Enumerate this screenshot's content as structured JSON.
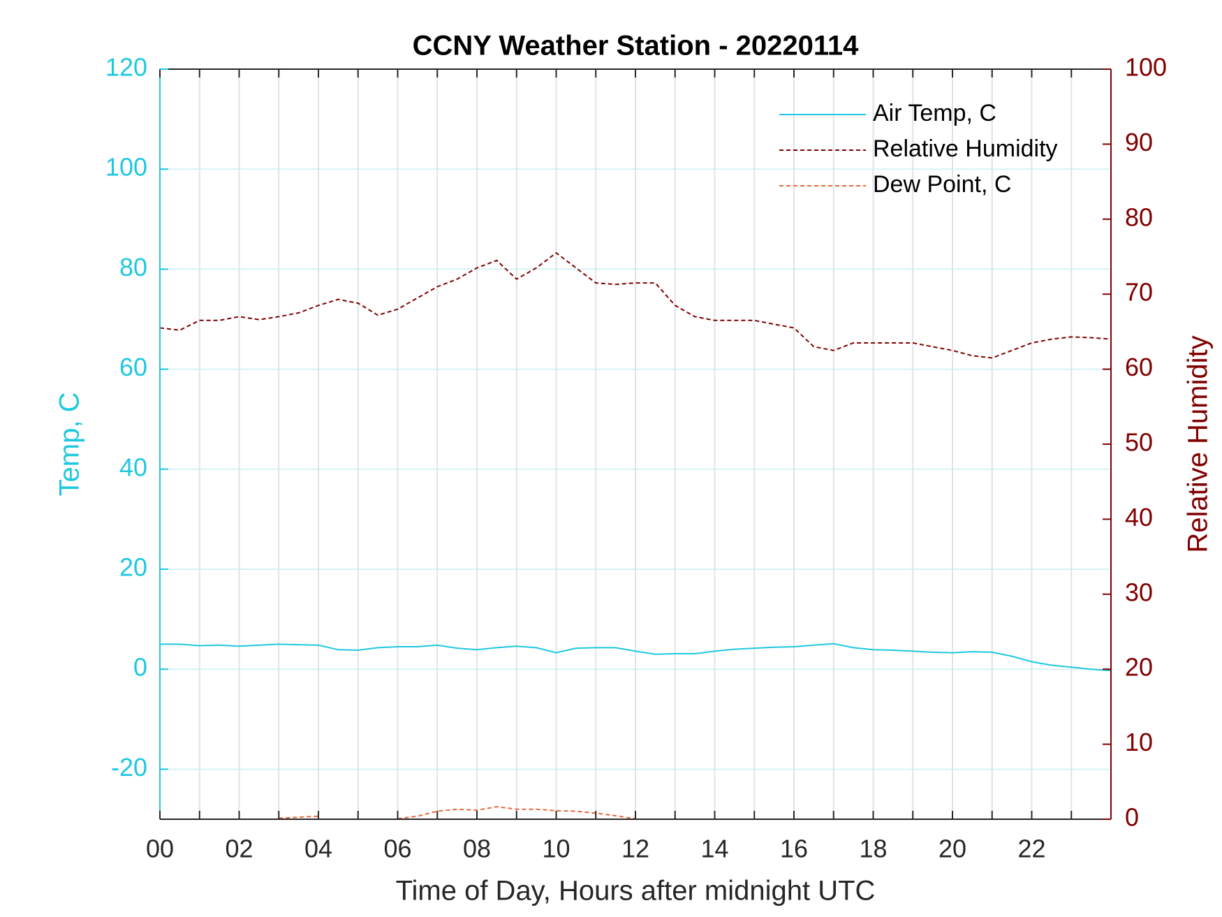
{
  "chart_data": {
    "type": "line",
    "title": "CCNY Weather Station - 20220114",
    "xlabel": "Time of Day, Hours after midnight UTC",
    "ylabel": "Temp, C",
    "y2label": "Relative Humidity",
    "x": [
      0,
      0.5,
      1,
      1.5,
      2,
      2.5,
      3,
      3.5,
      4,
      4.5,
      5,
      5.5,
      6,
      6.5,
      7,
      7.5,
      8,
      8.5,
      9,
      9.5,
      10,
      10.5,
      11,
      11.5,
      12,
      12.5,
      13,
      13.5,
      14,
      14.5,
      15,
      15.5,
      16,
      16.5,
      17,
      17.5,
      18,
      18.5,
      19,
      19.5,
      20,
      20.5,
      21,
      21.5,
      22,
      22.5,
      23,
      23.5,
      24
    ],
    "series": [
      {
        "name": "Air Temp, C",
        "color": "#1ec8e0",
        "linestyle": "solid",
        "axis": "y",
        "values": [
          5,
          5,
          4.7,
          4.8,
          4.6,
          4.8,
          5,
          4.9,
          4.8,
          3.9,
          3.8,
          4.3,
          4.5,
          4.5,
          4.8,
          4.2,
          3.9,
          4.3,
          4.6,
          4.3,
          3.3,
          4.2,
          4.3,
          4.3,
          3.6,
          3.0,
          3.1,
          3.1,
          3.6,
          4.0,
          4.2,
          4.4,
          4.5,
          4.8,
          5.1,
          4.3,
          3.9,
          3.8,
          3.6,
          3.4,
          3.3,
          3.5,
          3.4,
          2.6,
          1.5,
          0.8,
          0.4,
          0,
          -0.3
        ]
      },
      {
        "name": "Relative Humidity",
        "color": "#800000",
        "linestyle": "dashed",
        "axis": "y2",
        "values": [
          65.5,
          65.2,
          66.5,
          66.5,
          67,
          66.6,
          67,
          67.5,
          68.5,
          69.3,
          68.8,
          67.2,
          68,
          69.5,
          71,
          72,
          73.5,
          74.5,
          72,
          73.5,
          75.5,
          73.5,
          71.5,
          71.3,
          71.5,
          71.5,
          68.5,
          67,
          66.5,
          66.5,
          66.5,
          66,
          65.5,
          63,
          62.5,
          63.5,
          63.5,
          63.5,
          63.5,
          63,
          62.5,
          61.8,
          61.5,
          62.5,
          63.5,
          64,
          64.3,
          64.2,
          64
        ]
      },
      {
        "name": "Dew Point, C",
        "color": "#e8683a",
        "linestyle": "dashed",
        "axis": "y",
        "values": [
          null,
          null,
          null,
          null,
          null,
          null,
          -29.8,
          -29.6,
          -29.4,
          null,
          null,
          null,
          -29.9,
          -29.4,
          -28.4,
          -28.0,
          -28.2,
          -27.5,
          -28.0,
          -28.0,
          -28.3,
          -28.4,
          -28.8,
          -29.3,
          -29.9,
          null,
          null,
          null,
          null,
          null,
          null,
          null,
          null,
          null,
          null,
          null,
          null,
          null,
          null,
          null,
          null,
          null,
          null,
          null,
          null,
          null,
          null,
          null,
          null
        ]
      }
    ],
    "xlim": [
      0,
      24
    ],
    "xticks": [
      {
        "value": 0,
        "label": "00"
      },
      {
        "value": 2,
        "label": "02"
      },
      {
        "value": 4,
        "label": "04"
      },
      {
        "value": 6,
        "label": "06"
      },
      {
        "value": 8,
        "label": "08"
      },
      {
        "value": 10,
        "label": "10"
      },
      {
        "value": 12,
        "label": "12"
      },
      {
        "value": 14,
        "label": "14"
      },
      {
        "value": 16,
        "label": "16"
      },
      {
        "value": 18,
        "label": "18"
      },
      {
        "value": 20,
        "label": "20"
      },
      {
        "value": 22,
        "label": "22"
      }
    ],
    "xminorticks": [
      1,
      3,
      5,
      7,
      9,
      11,
      13,
      15,
      17,
      19,
      21,
      23
    ],
    "ylim": [
      -30,
      120
    ],
    "yticks": [
      -20,
      0,
      20,
      40,
      60,
      80,
      100,
      120
    ],
    "y2lim": [
      0,
      100
    ],
    "y2ticks": [
      0,
      10,
      20,
      30,
      40,
      50,
      60,
      70,
      80,
      90,
      100
    ],
    "ycolor": "#1ec8e0",
    "y2color": "#800000",
    "grid": true,
    "legend": "northeast"
  }
}
